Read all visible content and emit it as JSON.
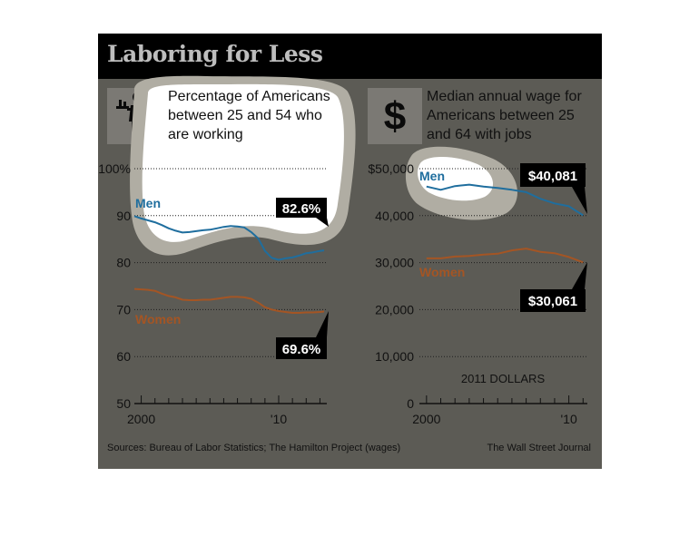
{
  "title": "Laboring for Less",
  "panels": {
    "left": {
      "description": "Percentage of Americans between 25 and 54 who are working",
      "description_lines": [
        "Percentage of Americans",
        "between 25 and 54 who",
        "are working"
      ],
      "icon": "waiter-icon",
      "men_label": "Men",
      "women_label": "Women",
      "men_callout": "82.6%",
      "women_callout": "69.6%",
      "x_ticks": [
        "2000",
        "'10"
      ]
    },
    "right": {
      "description": "Median annual wage for Americans between 25 and 64 with jobs",
      "description_lines": [
        "Median annual wage for",
        "Americans between 25",
        "and 64 with jobs"
      ],
      "icon": "dollar-icon",
      "icon_glyph": "$",
      "men_label": "Men",
      "women_label": "Women",
      "men_callout": "$40,081",
      "women_callout": "$30,061",
      "unit_note": "2011 DOLLARS",
      "x_ticks": [
        "2000",
        "'10"
      ]
    }
  },
  "footer": {
    "sources": "Sources: Bureau of Labor Statistics; The Hamilton Project (wages)",
    "credit": "The Wall Street Journal"
  },
  "colors": {
    "background": "#5c5b55",
    "title_bar": "#000000",
    "men": "#1f6e9e",
    "women": "#a45524",
    "grid": "#1e1e1e"
  },
  "chart_data": [
    {
      "type": "line",
      "ylim": [
        50,
        100
      ],
      "yticks": [
        50,
        60,
        70,
        80,
        90,
        100
      ],
      "ytick_labels": [
        "50",
        "60",
        "70",
        "80",
        "90",
        "100%"
      ],
      "xlim": [
        1999.5,
        2013.5
      ],
      "grid": true,
      "series": [
        {
          "name": "Men",
          "x": [
            1999.5,
            2000,
            2000.5,
            2001,
            2001.5,
            2002,
            2002.5,
            2003,
            2003.5,
            2004,
            2004.5,
            2005,
            2005.5,
            2006,
            2006.5,
            2007,
            2007.5,
            2008,
            2008.5,
            2009,
            2009.5,
            2010,
            2010.5,
            2011,
            2011.5,
            2012,
            2012.5,
            2013,
            2013.3
          ],
          "y": [
            89.9,
            89.4,
            89.0,
            88.6,
            88.0,
            87.3,
            86.8,
            86.4,
            86.5,
            86.7,
            86.9,
            87.0,
            87.3,
            87.6,
            87.8,
            87.7,
            87.5,
            86.5,
            85.2,
            82.5,
            81.0,
            80.6,
            80.9,
            81.1,
            81.5,
            82.0,
            82.2,
            82.5,
            82.6
          ]
        },
        {
          "name": "Women",
          "x": [
            1999.5,
            2000,
            2000.5,
            2001,
            2001.5,
            2002,
            2002.5,
            2003,
            2003.5,
            2004,
            2004.5,
            2005,
            2005.5,
            2006,
            2006.5,
            2007,
            2007.5,
            2008,
            2008.5,
            2009,
            2009.5,
            2010,
            2010.5,
            2011,
            2011.5,
            2012,
            2012.5,
            2013,
            2013.3
          ],
          "y": [
            74.4,
            74.3,
            74.2,
            74.0,
            73.4,
            72.9,
            72.6,
            72.1,
            72.0,
            72.0,
            72.1,
            72.1,
            72.3,
            72.5,
            72.7,
            72.7,
            72.6,
            72.3,
            71.5,
            70.5,
            70.0,
            69.7,
            69.5,
            69.3,
            69.3,
            69.4,
            69.4,
            69.5,
            69.6
          ]
        }
      ]
    },
    {
      "type": "line",
      "ylim": [
        0,
        50000
      ],
      "yticks": [
        0,
        10000,
        20000,
        30000,
        40000,
        50000
      ],
      "ytick_labels": [
        "0",
        "10,000",
        "20,000",
        "30,000",
        "40,000",
        "$50,000"
      ],
      "xlim": [
        1999.5,
        2011.3
      ],
      "grid": true,
      "series": [
        {
          "name": "Men",
          "x": [
            2000,
            2001,
            2002,
            2003,
            2004,
            2005,
            2006,
            2007,
            2008,
            2009,
            2010,
            2011
          ],
          "y": [
            46200,
            45500,
            46300,
            46600,
            46200,
            45900,
            45500,
            45000,
            43600,
            42600,
            42000,
            40081
          ]
        },
        {
          "name": "Women",
          "x": [
            2000,
            2001,
            2002,
            2003,
            2004,
            2005,
            2006,
            2007,
            2008,
            2009,
            2010,
            2011
          ],
          "y": [
            30900,
            30900,
            31300,
            31400,
            31700,
            31900,
            32600,
            33000,
            32300,
            32000,
            31200,
            30061
          ]
        }
      ]
    }
  ]
}
